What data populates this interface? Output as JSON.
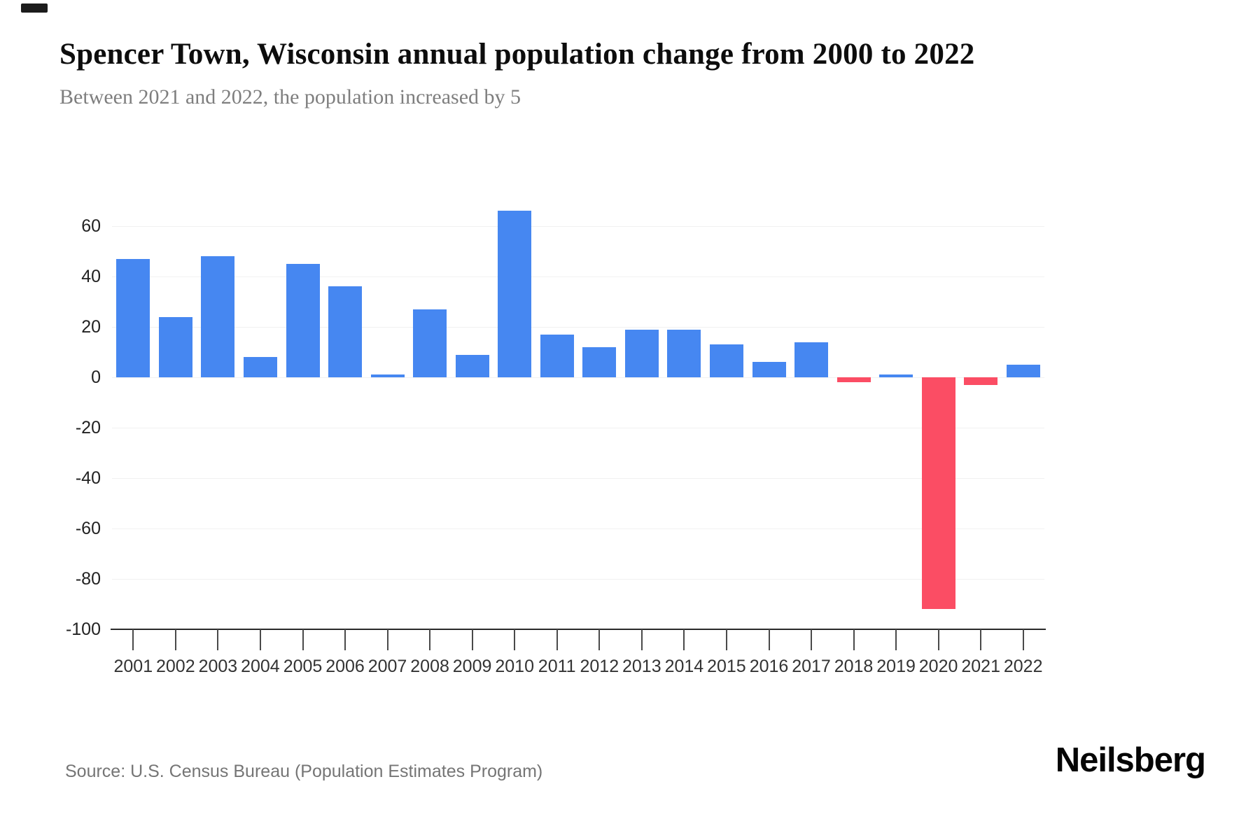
{
  "header": {
    "title": "Spencer Town, Wisconsin annual population change from 2000 to 2022",
    "subtitle": "Between 2021 and 2022, the population increased by 5"
  },
  "footer": {
    "source": "Source: U.S. Census Bureau (Population Estimates Program)",
    "brand": "Neilsberg"
  },
  "colors": {
    "positive_bar": "#4687f1",
    "negative_bar": "#fb4d64",
    "gridline": "#f1f1f1",
    "axis_line": "#2a2a2a",
    "tick": "#4a4a4a",
    "y_label": "#222222",
    "x_label": "#333333",
    "title_text": "#0d0d0d",
    "subtitle_text": "#7e7e7e",
    "source_text": "#757575"
  },
  "chart_data": {
    "type": "bar",
    "title": "Spencer Town, Wisconsin annual population change from 2000 to 2022",
    "subtitle": "Between 2021 and 2022, the population increased by 5",
    "xlabel": "",
    "ylabel": "",
    "categories": [
      "2001",
      "2002",
      "2003",
      "2004",
      "2005",
      "2006",
      "2007",
      "2008",
      "2009",
      "2010",
      "2011",
      "2012",
      "2013",
      "2014",
      "2015",
      "2016",
      "2017",
      "2018",
      "2019",
      "2020",
      "2021",
      "2022"
    ],
    "values": [
      47,
      24,
      48,
      8,
      45,
      36,
      1,
      27,
      9,
      66,
      17,
      12,
      19,
      19,
      13,
      6,
      14,
      -2,
      1,
      -92,
      -3,
      5
    ],
    "ylim": [
      -100,
      80
    ],
    "yticks": [
      60,
      40,
      20,
      0,
      -20,
      -40,
      -60,
      -80,
      -100
    ],
    "grid": true,
    "legend_position": "none",
    "positive_color": "#4687f1",
    "negative_color": "#fb4d64"
  }
}
